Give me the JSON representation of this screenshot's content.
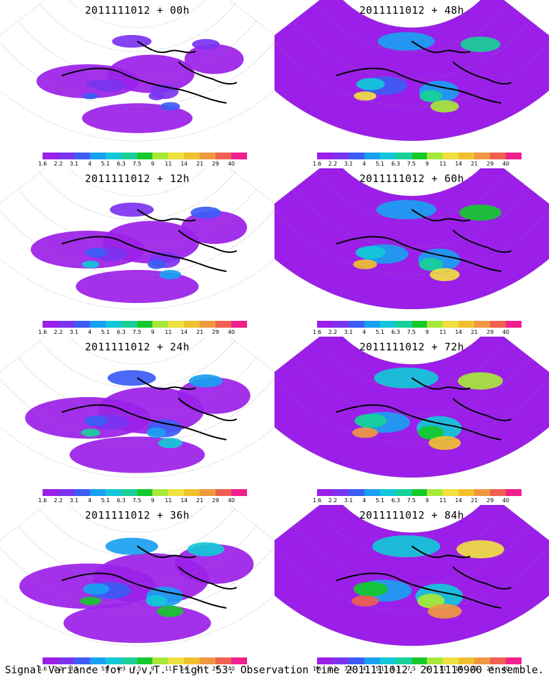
{
  "panels": [
    {
      "title": "2011111012 + 00h",
      "intensity": 0.15
    },
    {
      "title": "2011111012 + 48h",
      "intensity": 0.55
    },
    {
      "title": "2011111012 + 12h",
      "intensity": 0.25
    },
    {
      "title": "2011111012 + 60h",
      "intensity": 0.62
    },
    {
      "title": "2011111012 + 24h",
      "intensity": 0.35
    },
    {
      "title": "2011111012 + 72h",
      "intensity": 0.72
    },
    {
      "title": "2011111012 + 36h",
      "intensity": 0.45
    },
    {
      "title": "2011111012 + 84h",
      "intensity": 0.8
    }
  ],
  "colorbar": {
    "labels": [
      "1.6",
      "2.2",
      "3.1",
      "4",
      "5.1",
      "6.3",
      "7.5",
      "9",
      "11",
      "14",
      "21",
      "29",
      "40"
    ],
    "colors": [
      "#9b1fe8",
      "#7c33f0",
      "#3c5cf5",
      "#1aa0f0",
      "#12c8d8",
      "#18d098",
      "#16c82c",
      "#a8e838",
      "#f0e040",
      "#f0c030",
      "#f09840",
      "#f06050",
      "#f0208c"
    ]
  },
  "caption": "Signal Variance for u,v,T. Flight 53. Observation time 2011111012. 2011110900 ensemble."
}
